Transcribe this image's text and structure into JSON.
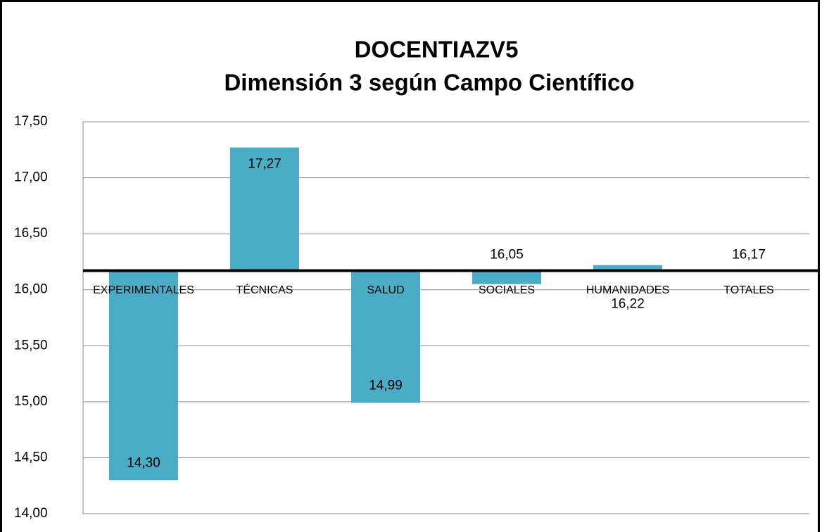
{
  "chart_data": {
    "type": "bar",
    "title": "DOCENTIAZV5",
    "subtitle": "Dimensión 3 según Campo Científico",
    "categories": [
      "EXPERIMENTALES",
      "TÉCNICAS",
      "SALUD",
      "SOCIALES",
      "HUMANIDADES",
      "TOTALES"
    ],
    "values": [
      14.3,
      17.27,
      14.99,
      16.05,
      16.22,
      16.17
    ],
    "value_labels": [
      "14,30",
      "17,27",
      "14,99",
      "16,05",
      "16,22",
      "16,17"
    ],
    "color": "#4bacc6",
    "ylim": [
      14,
      17.5
    ],
    "yticks": [
      {
        "value": 14,
        "label": "14,00"
      },
      {
        "value": 14.5,
        "label": "14,50"
      },
      {
        "value": 15,
        "label": "15,00"
      },
      {
        "value": 15.5,
        "label": "15,50"
      },
      {
        "value": 16,
        "label": "16,00"
      },
      {
        "value": 16.5,
        "label": "16,50"
      },
      {
        "value": 17,
        "label": "17,00"
      },
      {
        "value": 17.5,
        "label": "17,50"
      }
    ],
    "axis_crosses_at": 16.17,
    "grid": true
  }
}
